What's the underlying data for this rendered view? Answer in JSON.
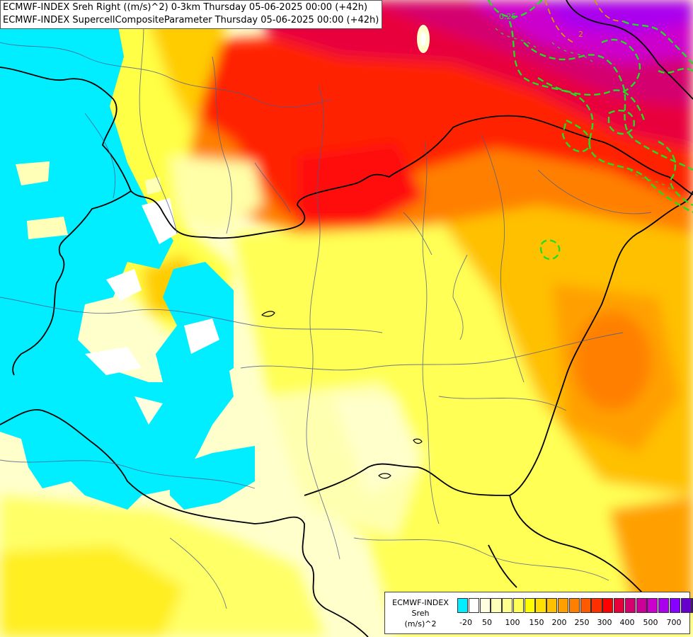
{
  "header": {
    "line1": "ECMWF-INDEX Sreh Right ((m/s)^2) 0-3km Thursday 05-06-2025 00:00 (+42h)",
    "line2": "ECMWF-INDEX SupercellCompositeParameter Thursday 05-06-2025 00:00 (+42h)"
  },
  "legend": {
    "title": [
      "ECMWF-INDEX",
      "Sreh",
      "(m/s)^2"
    ],
    "colors": [
      "#00eeff",
      "#ffffff",
      "#ffffe0",
      "#ffffb8",
      "#ffff90",
      "#ffff55",
      "#ffff00",
      "#ffe000",
      "#ffc000",
      "#ffa000",
      "#ff8000",
      "#ff5a00",
      "#ff3000",
      "#ff0000",
      "#e8003c",
      "#d40070",
      "#cc0099",
      "#cc00cc",
      "#aa00ee",
      "#8800ff",
      "#6600cc",
      "#440099",
      "#1a006e"
    ],
    "ticks": [
      "-20",
      "50",
      "100",
      "150",
      "200",
      "250",
      "300",
      "400",
      "500",
      "700"
    ]
  },
  "contours": {
    "color": "#22dd22",
    "labels": [
      "0.25",
      "2"
    ]
  }
}
